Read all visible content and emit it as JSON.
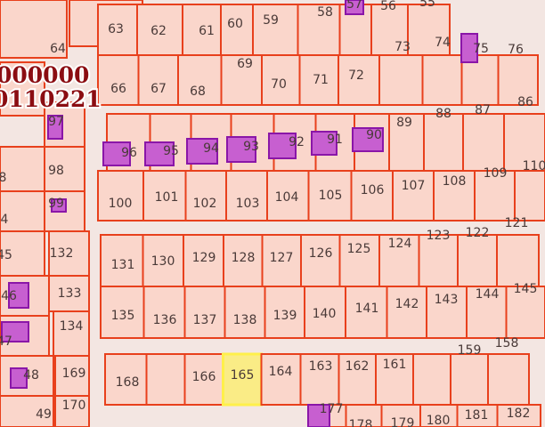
{
  "map": {
    "cadastral_number_lines": [
      "000000",
      "0110221"
    ],
    "selected_parcel": "165",
    "colors": {
      "parcel_fill": "#fad6cb",
      "parcel_border": "#e8401c",
      "road": "#f5ebe7",
      "building_fill": "#c75fd0",
      "building_border": "#8a16a8",
      "selection": "#fff04a",
      "label_overlay": "#8b0d12"
    },
    "parcels": [
      "63",
      "62",
      "61",
      "60",
      "59",
      "58",
      "57",
      "56",
      "55",
      "66",
      "67",
      "68",
      "69",
      "70",
      "71",
      "72",
      "73",
      "74",
      "75",
      "76",
      "96",
      "95",
      "94",
      "93",
      "92",
      "91",
      "90",
      "89",
      "88",
      "87",
      "86",
      "100",
      "101",
      "102",
      "103",
      "104",
      "105",
      "106",
      "107",
      "108",
      "109",
      "110",
      "131",
      "130",
      "129",
      "128",
      "127",
      "126",
      "125",
      "124",
      "123",
      "122",
      "121",
      "135",
      "136",
      "137",
      "138",
      "139",
      "140",
      "141",
      "142",
      "143",
      "144",
      "145",
      "168",
      "",
      "166",
      "165",
      "164",
      "163",
      "162",
      "161",
      "",
      "159",
      "158",
      "177",
      "178",
      "179",
      "180",
      "181",
      "182",
      "64",
      "97",
      "98",
      "99",
      "132",
      "133",
      "134",
      "169",
      "170",
      "8",
      "4",
      "45",
      "46",
      "47",
      "48",
      "49"
    ]
  }
}
